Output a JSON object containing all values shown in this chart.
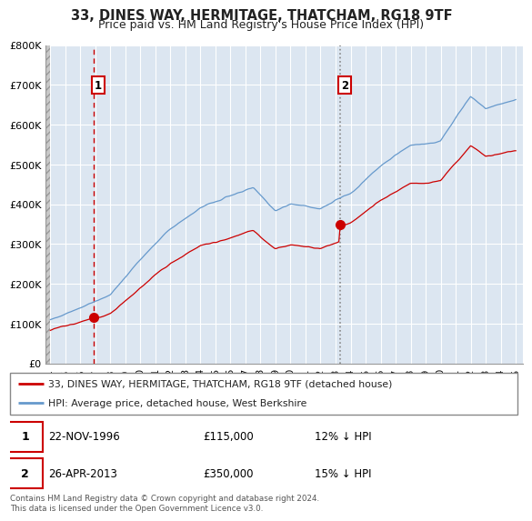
{
  "title": "33, DINES WAY, HERMITAGE, THATCHAM, RG18 9TF",
  "subtitle": "Price paid vs. HM Land Registry's House Price Index (HPI)",
  "ylim": [
    0,
    800000
  ],
  "yticks": [
    0,
    100000,
    200000,
    300000,
    400000,
    500000,
    600000,
    700000,
    800000
  ],
  "ytick_labels": [
    "£0",
    "£100K",
    "£200K",
    "£300K",
    "£400K",
    "£500K",
    "£600K",
    "£700K",
    "£800K"
  ],
  "xmin": 1993.7,
  "xmax": 2025.5,
  "xticks": [
    1994,
    1995,
    1996,
    1997,
    1998,
    1999,
    2000,
    2001,
    2002,
    2003,
    2004,
    2005,
    2006,
    2007,
    2008,
    2009,
    2010,
    2011,
    2012,
    2013,
    2014,
    2015,
    2016,
    2017,
    2018,
    2019,
    2020,
    2021,
    2022,
    2023,
    2024,
    2025
  ],
  "vline1_x": 1996.9,
  "vline1_color": "#cc0000",
  "vline1_style": "dashed",
  "vline2_x": 2013.3,
  "vline2_color": "#888888",
  "vline2_style": "dotted",
  "marker1_y": 115000,
  "marker2_y": 350000,
  "legend_line1": "33, DINES WAY, HERMITAGE, THATCHAM, RG18 9TF (detached house)",
  "legend_line2": "HPI: Average price, detached house, West Berkshire",
  "table_row1": [
    "1",
    "22-NOV-1996",
    "£115,000",
    "12% ↓ HPI"
  ],
  "table_row2": [
    "2",
    "26-APR-2013",
    "£350,000",
    "15% ↓ HPI"
  ],
  "footer": "Contains HM Land Registry data © Crown copyright and database right 2024.\nThis data is licensed under the Open Government Licence v3.0.",
  "red_color": "#cc0000",
  "blue_color": "#6699cc",
  "bg_color": "#dce6f1",
  "grid_color": "#ffffff",
  "title_fontsize": 10.5,
  "subtitle_fontsize": 9
}
